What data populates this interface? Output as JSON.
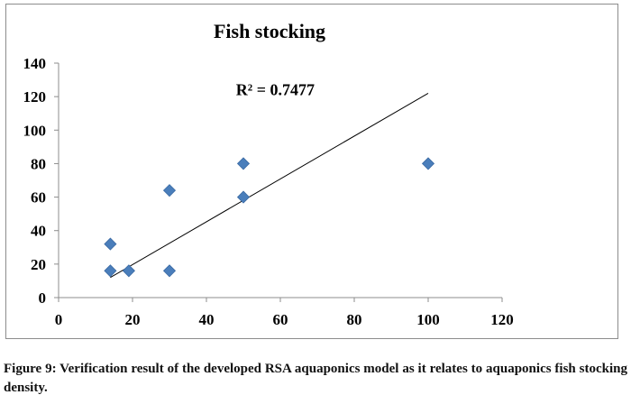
{
  "chart_data": {
    "type": "scatter",
    "title": "Fish stocking",
    "xlabel": "",
    "ylabel": "",
    "xlim": [
      0,
      120
    ],
    "ylim": [
      0,
      140
    ],
    "x_ticks": [
      0,
      20,
      40,
      60,
      80,
      100,
      120
    ],
    "y_ticks": [
      0,
      20,
      40,
      60,
      80,
      100,
      120,
      140
    ],
    "grid": false,
    "legend": "none",
    "series": [
      {
        "marker": "diamond",
        "color": "#4a7ebb",
        "points": [
          {
            "x": 14,
            "y": 32
          },
          {
            "x": 14,
            "y": 16
          },
          {
            "x": 19,
            "y": 16
          },
          {
            "x": 30,
            "y": 64
          },
          {
            "x": 30,
            "y": 16
          },
          {
            "x": 50,
            "y": 80
          },
          {
            "x": 50,
            "y": 60
          },
          {
            "x": 100,
            "y": 80
          }
        ]
      }
    ],
    "trendline": {
      "type": "linear",
      "from": {
        "x": 14,
        "y": 12
      },
      "to": {
        "x": 100,
        "y": 122
      },
      "color": "#000000"
    },
    "annotations": [
      {
        "text": "R² = 0.7477",
        "x": 48,
        "y": 122
      }
    ]
  },
  "caption": "Figure 9: Verification result of the developed RSA aquaponics model as it relates to aquaponics fish stocking density."
}
